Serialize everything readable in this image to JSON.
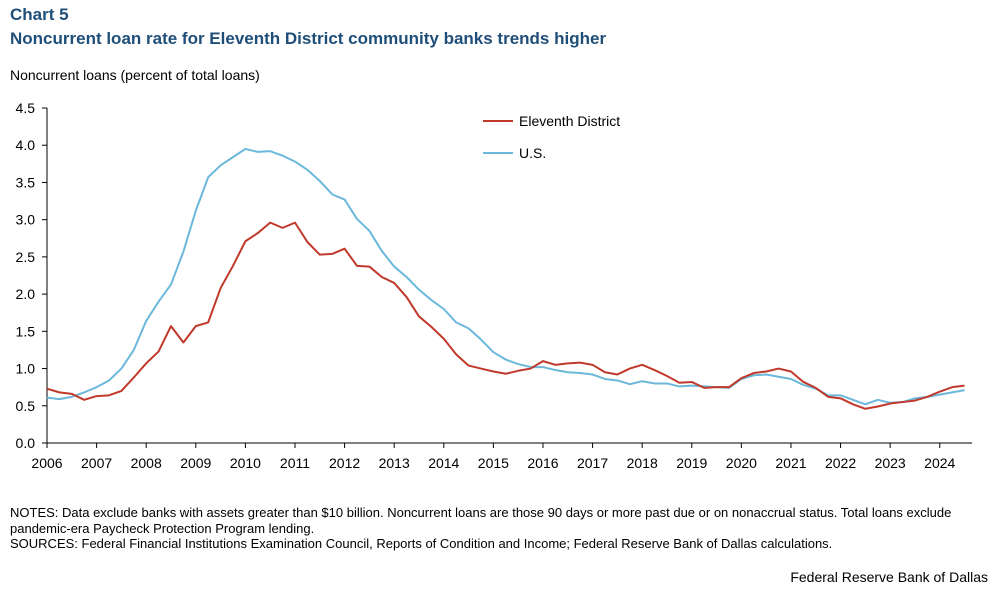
{
  "chart_data": {
    "type": "line",
    "kicker": "Chart 5",
    "title": "Noncurrent loan rate for Eleventh District community banks trends higher",
    "ylabel": "Noncurrent  loans (percent of total loans)",
    "xlabel": "",
    "ylim": [
      0,
      4.5
    ],
    "yticks": [
      "0.0",
      "0.5",
      "1.0",
      "1.5",
      "2.0",
      "2.5",
      "3.0",
      "3.5",
      "4.0",
      "4.5"
    ],
    "xlim": [
      2006.0,
      2024.65
    ],
    "xticks": [
      "2006",
      "2007",
      "2008",
      "2009",
      "2010",
      "2011",
      "2012",
      "2013",
      "2014",
      "2015",
      "2016",
      "2017",
      "2018",
      "2019",
      "2020",
      "2021",
      "2022",
      "2023",
      "2024"
    ],
    "grid": false,
    "legend_position": "top-center",
    "x": [
      2006.0,
      2006.25,
      2006.5,
      2006.75,
      2007.0,
      2007.25,
      2007.5,
      2007.75,
      2008.0,
      2008.25,
      2008.5,
      2008.75,
      2009.0,
      2009.25,
      2009.5,
      2009.75,
      2010.0,
      2010.25,
      2010.5,
      2010.75,
      2011.0,
      2011.25,
      2011.5,
      2011.75,
      2012.0,
      2012.25,
      2012.5,
      2012.75,
      2013.0,
      2013.25,
      2013.5,
      2013.75,
      2014.0,
      2014.25,
      2014.5,
      2014.75,
      2015.0,
      2015.25,
      2015.5,
      2015.75,
      2016.0,
      2016.25,
      2016.5,
      2016.75,
      2017.0,
      2017.25,
      2017.5,
      2017.75,
      2018.0,
      2018.25,
      2018.5,
      2018.75,
      2019.0,
      2019.25,
      2019.5,
      2019.75,
      2020.0,
      2020.25,
      2020.5,
      2020.75,
      2021.0,
      2021.25,
      2021.5,
      2021.75,
      2022.0,
      2022.25,
      2022.5,
      2022.75,
      2023.0,
      2023.25,
      2023.5,
      2023.75,
      2024.0,
      2024.25,
      2024.5
    ],
    "series": [
      {
        "name": "Eleventh District",
        "color": "#c0392b",
        "values": [
          0.73,
          0.68,
          0.66,
          0.58,
          0.63,
          0.64,
          0.7,
          0.88,
          1.07,
          1.23,
          1.57,
          1.35,
          1.57,
          1.62,
          2.08,
          2.38,
          2.71,
          2.82,
          2.96,
          2.89,
          2.96,
          2.7,
          2.53,
          2.54,
          2.61,
          2.38,
          2.37,
          2.23,
          2.15,
          1.96,
          1.7,
          1.56,
          1.4,
          1.19,
          1.04,
          1.0,
          0.96,
          0.93,
          0.97,
          1.0,
          1.1,
          1.05,
          1.07,
          1.08,
          1.05,
          0.95,
          0.92,
          1.0,
          1.05,
          0.98,
          0.9,
          0.81,
          0.82,
          0.74,
          0.75,
          0.75,
          0.87,
          0.94,
          0.96,
          1.0,
          0.96,
          0.82,
          0.74,
          0.62,
          0.6,
          0.52,
          0.46,
          0.49,
          0.53,
          0.55,
          0.57,
          0.62,
          0.69,
          0.75,
          0.77
        ]
      },
      {
        "name": "U.S.",
        "color": "#6bb8db",
        "values": [
          0.61,
          0.59,
          0.62,
          0.68,
          0.75,
          0.84,
          1.0,
          1.25,
          1.64,
          1.9,
          2.13,
          2.57,
          3.12,
          3.57,
          3.73,
          3.84,
          3.95,
          3.91,
          3.92,
          3.86,
          3.78,
          3.67,
          3.52,
          3.34,
          3.27,
          3.01,
          2.85,
          2.58,
          2.37,
          2.23,
          2.06,
          1.92,
          1.8,
          1.62,
          1.54,
          1.39,
          1.22,
          1.12,
          1.06,
          1.02,
          1.02,
          0.98,
          0.95,
          0.94,
          0.92,
          0.86,
          0.84,
          0.79,
          0.83,
          0.8,
          0.8,
          0.76,
          0.77,
          0.76,
          0.75,
          0.74,
          0.86,
          0.91,
          0.92,
          0.89,
          0.86,
          0.78,
          0.73,
          0.64,
          0.64,
          0.58,
          0.52,
          0.58,
          0.54,
          0.55,
          0.6,
          0.62,
          0.65,
          0.68,
          0.71
        ]
      }
    ]
  },
  "notes": {
    "notes_text": "NOTES: Data exclude banks with assets greater than $10 billion. Noncurrent loans are those 90 days or more past due or on nonaccrual status. Total loans exclude pandemic-era Paycheck Protection Program lending.",
    "sources_text": "SOURCES: Federal Financial Institutions Examination Council, Reports of Condition and Income; Federal Reserve Bank of Dallas calculations."
  },
  "credit": "Federal Reserve Bank of Dallas"
}
